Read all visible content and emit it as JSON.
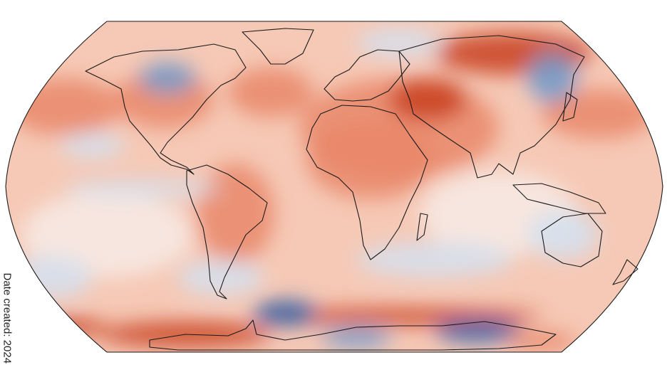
{
  "footer": {
    "date_created": "Date created: 2024"
  },
  "map": {
    "projection": "robinson",
    "subject": "temperature anomaly",
    "colors": {
      "warm_strong": "#c8401f",
      "warm": "#e9876a",
      "warm_light": "#f6c9b6",
      "neutral": "#f7ebe6",
      "cool_light": "#d3e1f0",
      "cool": "#6f9bcd",
      "cool_strong": "#2d5fa8",
      "outline": "#1a1a1a"
    }
  }
}
